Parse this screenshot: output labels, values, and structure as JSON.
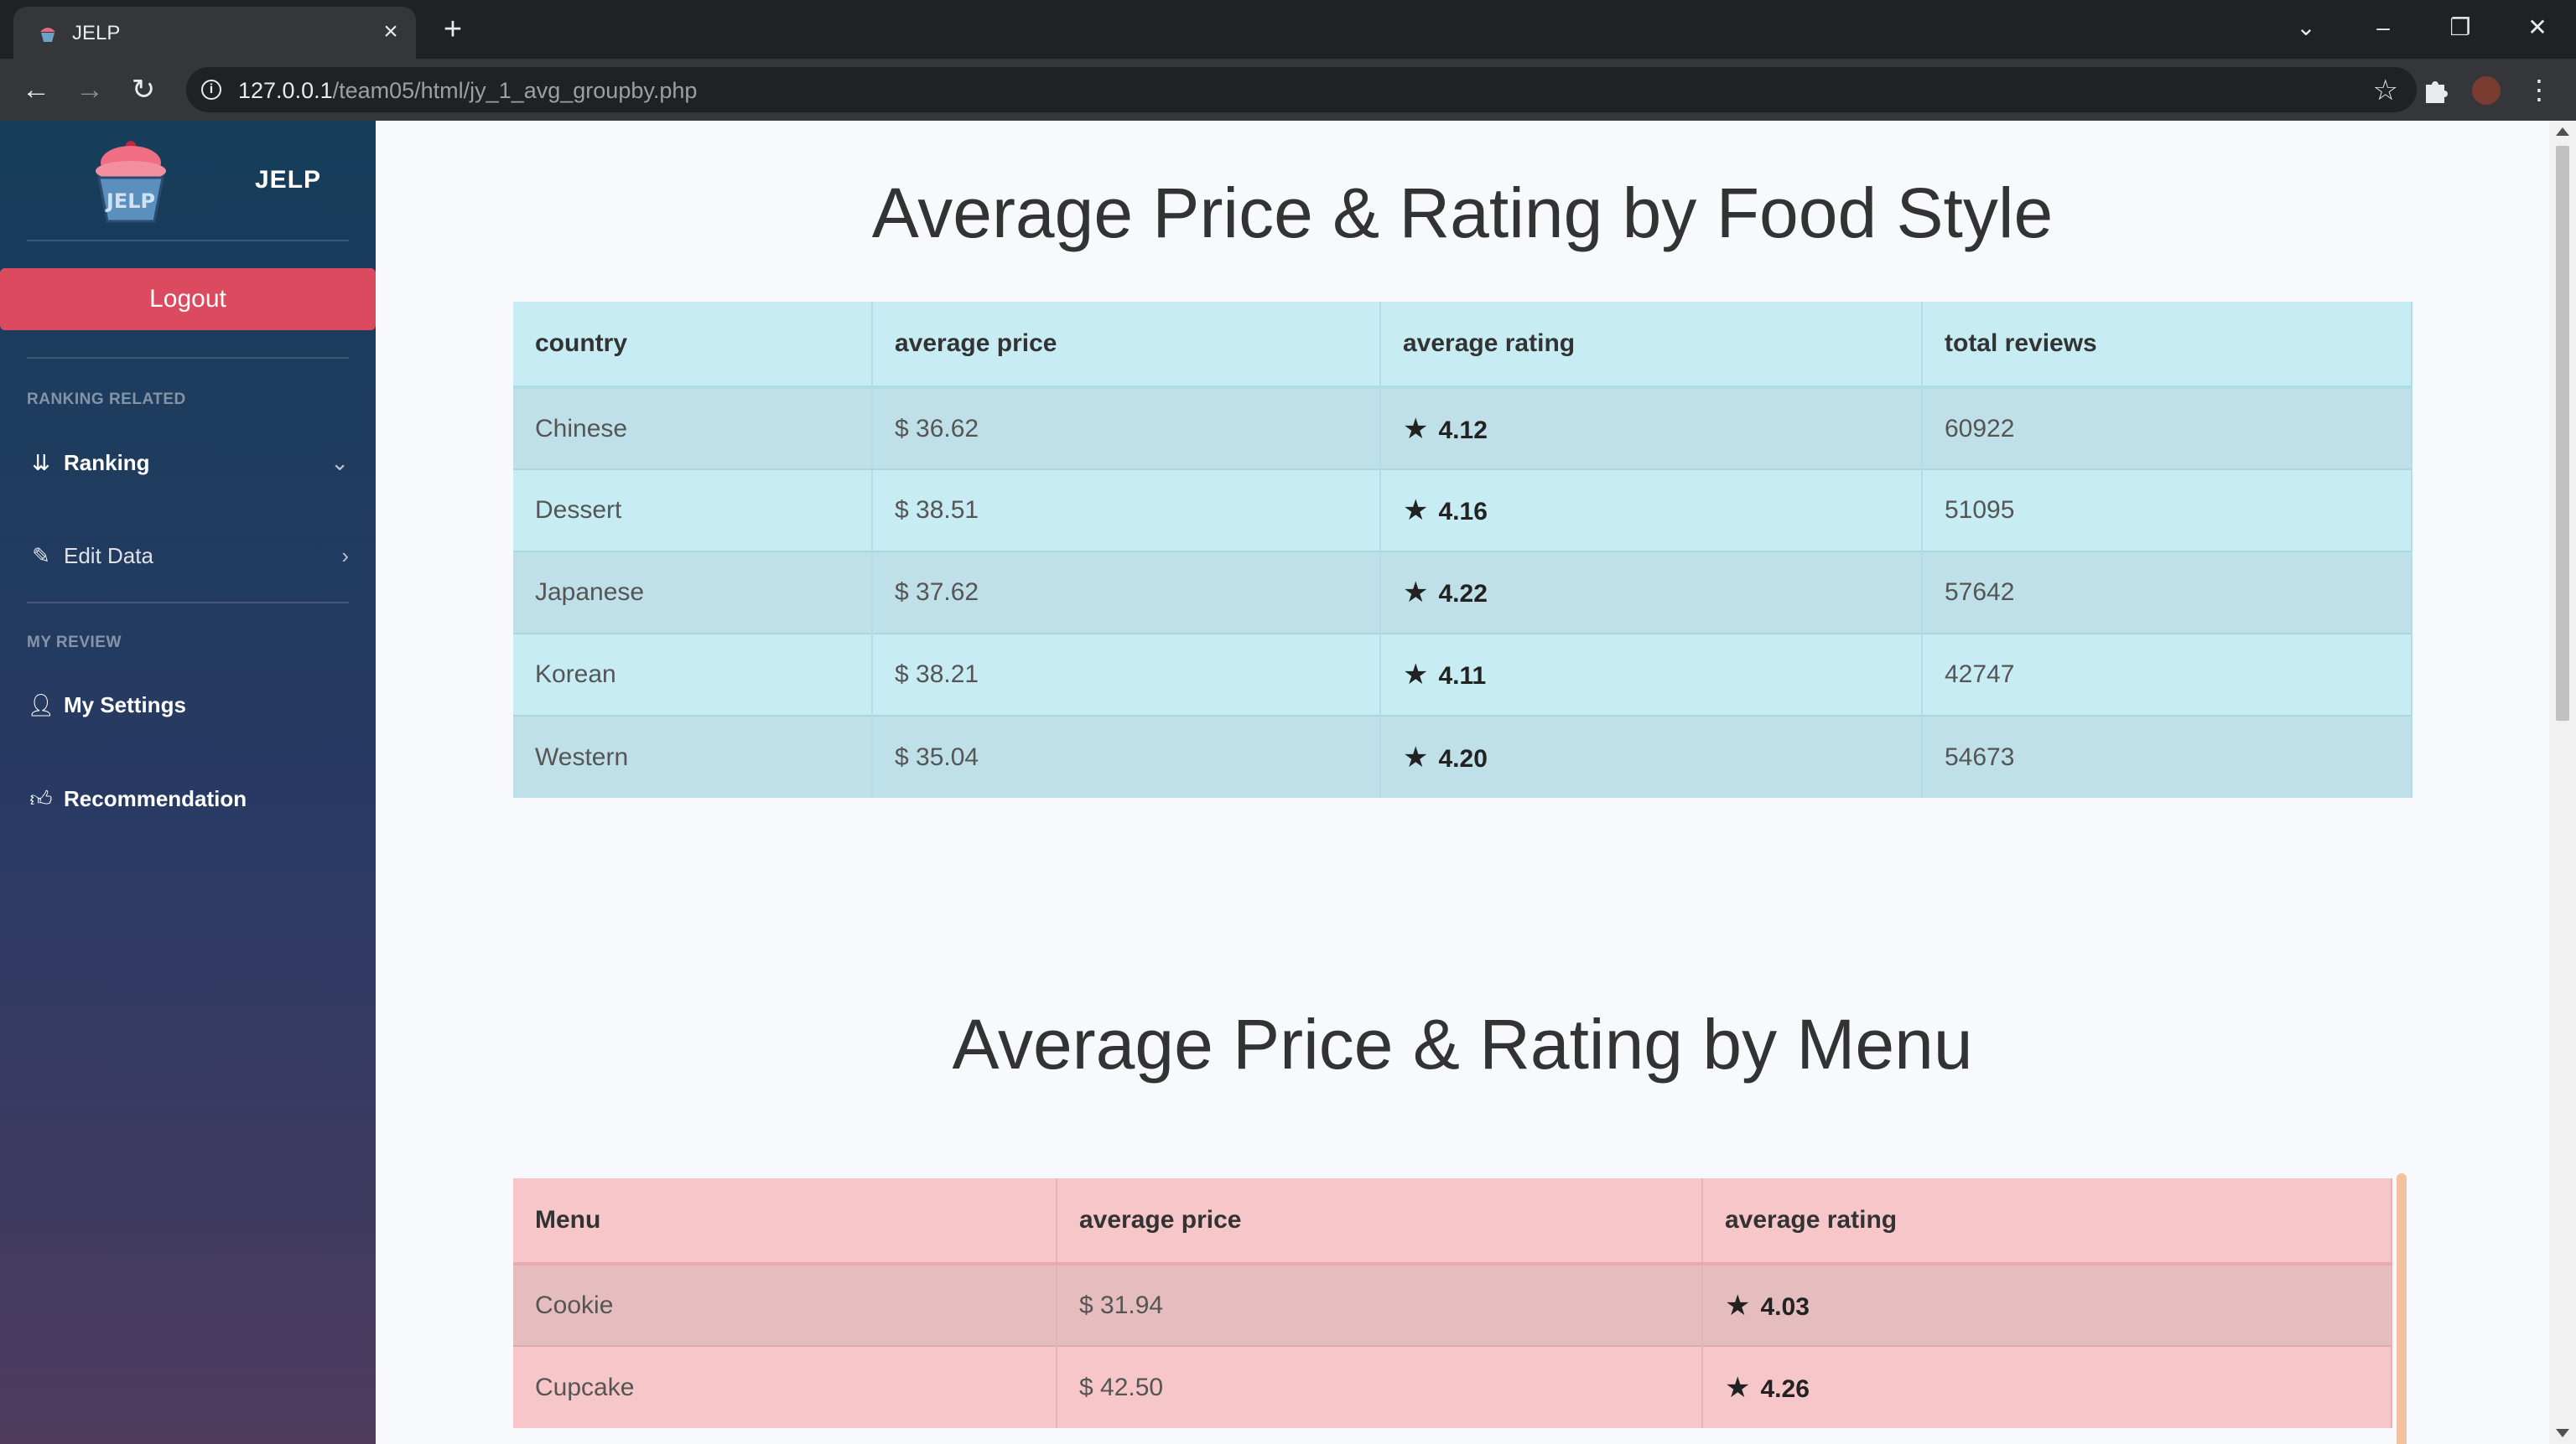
{
  "browser": {
    "tab_title": "JELP",
    "url_host": "127.0.0.1",
    "url_path": "/team05/html/jy_1_avg_groupby.php",
    "icons": [
      "favicon-icon",
      "close-icon",
      "plus-icon",
      "back-icon",
      "forward-icon",
      "reload-icon",
      "info-icon",
      "star-icon",
      "puzzle-icon",
      "kebab-menu-icon"
    ]
  },
  "sidebar": {
    "brand": "JELP",
    "logout_label": "Logout",
    "section_ranking": "RANKING RELATED",
    "ranking_label": "Ranking",
    "edit_label": "Edit Data",
    "section_review": "MY REVIEW",
    "settings_label": "My Settings",
    "recommendation_label": "Recommendation"
  },
  "style_section": {
    "title": "Average Price & Rating by Food Style",
    "headers": [
      "country",
      "average price",
      "average rating",
      "total reviews"
    ],
    "rows": [
      {
        "country": "Chinese",
        "price": "$ 36.62",
        "rating": "4.12",
        "reviews": "60922"
      },
      {
        "country": "Dessert",
        "price": "$ 38.51",
        "rating": "4.16",
        "reviews": "51095"
      },
      {
        "country": "Japanese",
        "price": "$ 37.62",
        "rating": "4.22",
        "reviews": "57642"
      },
      {
        "country": "Korean",
        "price": "$ 38.21",
        "rating": "4.11",
        "reviews": "42747"
      },
      {
        "country": "Western",
        "price": "$ 35.04",
        "rating": "4.20",
        "reviews": "54673"
      }
    ]
  },
  "menu_section": {
    "title": "Average Price & Rating by Menu",
    "headers": [
      "Menu",
      "average price",
      "average rating"
    ],
    "rows": [
      {
        "menu": "Cookie",
        "price": "$ 31.94",
        "rating": "4.03"
      },
      {
        "menu": "Cupcake",
        "price": "$ 42.50",
        "rating": "4.26"
      }
    ]
  },
  "colors": {
    "sidebar_top": "#153d5a",
    "sidebar_bottom": "#4e3b5e",
    "logout": "#dc4a5f",
    "style_table": "#c7ecf3",
    "menu_table": "#f6c6c8"
  }
}
